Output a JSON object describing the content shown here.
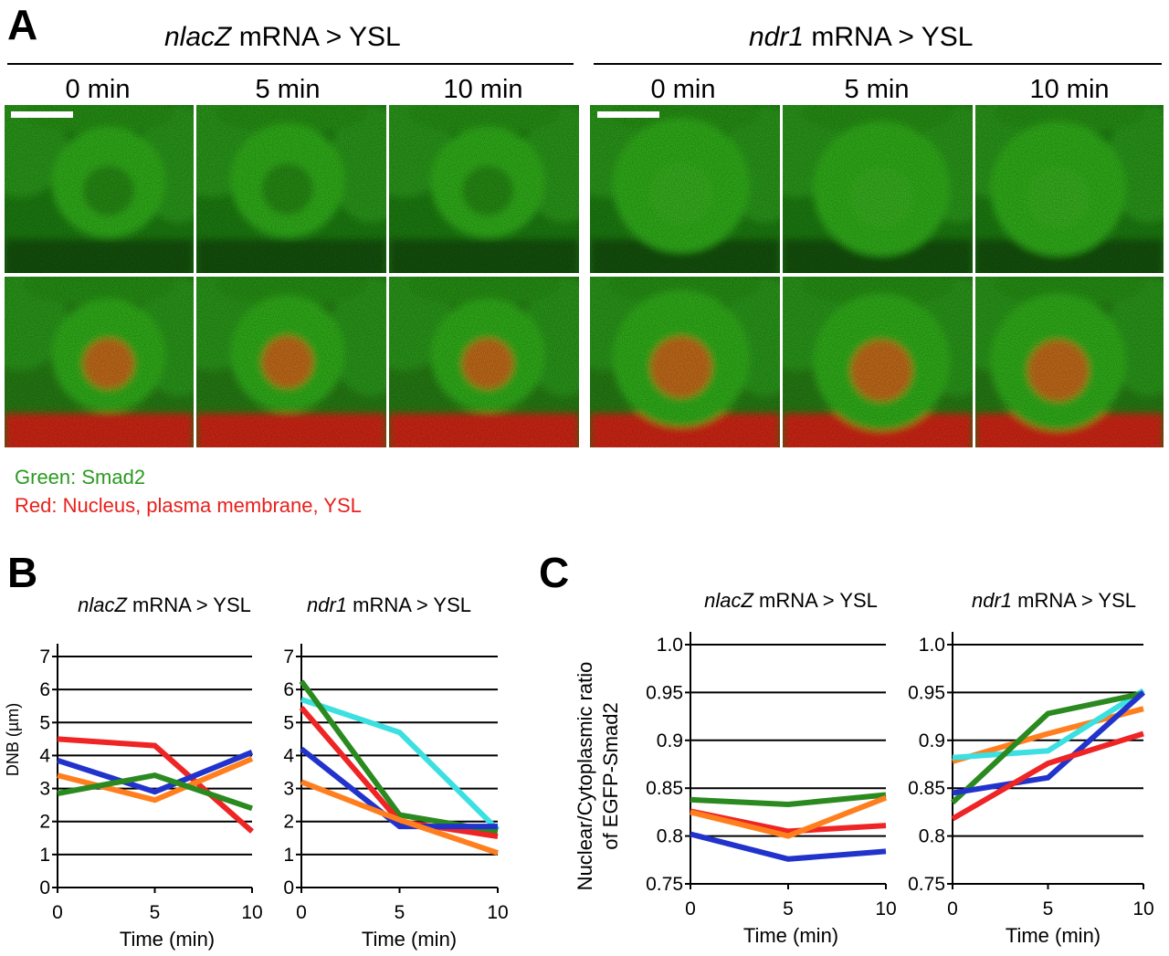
{
  "panel_a": {
    "letter": "A",
    "conditions": [
      {
        "gene": "nlacZ",
        "rest": " mRNA > YSL",
        "timepoints": [
          "0 min",
          "5 min",
          "10 min"
        ]
      },
      {
        "gene": "ndr1",
        "rest": " mRNA > YSL",
        "timepoints": [
          "0 min",
          "5 min",
          "10 min"
        ]
      }
    ],
    "legend": {
      "green": "Green: Smad2",
      "red": "Red: Nucleus, plasma membrane, YSL"
    },
    "colors": {
      "green_channel": "#35c21a",
      "red_channel": "#e82a12",
      "nucleus": "#d9771a"
    }
  },
  "panel_b": {
    "letter": "B"
  },
  "panel_c": {
    "letter": "C"
  },
  "chart_data": [
    {
      "id": "B-left",
      "type": "line",
      "title_italic": "nlacZ",
      "title_rest": " mRNA > YSL",
      "xlabel": "Time (min)",
      "ylabel": "DNB (µm)",
      "x": [
        0,
        5,
        10
      ],
      "x_ticks": [
        "0",
        "5",
        "10"
      ],
      "ylim": [
        0,
        7
      ],
      "y_ticks": [
        "0",
        "1",
        "2",
        "3",
        "4",
        "5",
        "6",
        "7"
      ],
      "grid": true,
      "series": [
        {
          "color": "#ef2424",
          "values": [
            4.5,
            4.3,
            1.7
          ]
        },
        {
          "color": "#2233cc",
          "values": [
            3.85,
            2.9,
            4.1
          ]
        },
        {
          "color": "#ff7f1e",
          "values": [
            3.4,
            2.65,
            3.9
          ]
        },
        {
          "color": "#2a8a1f",
          "values": [
            2.85,
            3.4,
            2.4
          ]
        }
      ]
    },
    {
      "id": "B-right",
      "type": "line",
      "title_italic": "ndr1",
      "title_rest": " mRNA > YSL",
      "xlabel": "Time (min)",
      "ylabel": "",
      "x": [
        0,
        5,
        10
      ],
      "x_ticks": [
        "0",
        "5",
        "10"
      ],
      "ylim": [
        0,
        7
      ],
      "y_ticks": [
        "0",
        "1",
        "2",
        "3",
        "4",
        "5",
        "6",
        "7"
      ],
      "grid": true,
      "series": [
        {
          "color": "#3ce0e0",
          "values": [
            5.7,
            4.7,
            1.75
          ]
        },
        {
          "color": "#2a8a1f",
          "values": [
            6.25,
            2.2,
            1.7
          ]
        },
        {
          "color": "#ef2424",
          "values": [
            5.45,
            2.0,
            1.55
          ]
        },
        {
          "color": "#2233cc",
          "values": [
            4.2,
            1.85,
            1.85
          ]
        },
        {
          "color": "#ff7f1e",
          "values": [
            3.2,
            2.05,
            1.05
          ]
        }
      ]
    },
    {
      "id": "C-left",
      "type": "line",
      "title_italic": "nlacZ",
      "title_rest": " mRNA > YSL",
      "xlabel": "Time (min)",
      "ylabel": "Nuclear/Cytoplasmic ratio\nof EGFP-Smad2",
      "x": [
        0,
        5,
        10
      ],
      "x_ticks": [
        "0",
        "5",
        "10"
      ],
      "ylim": [
        0.75,
        1.0
      ],
      "y_ticks": [
        "0.75",
        "0.8",
        "0.85",
        "0.9",
        "0.95",
        "1.0"
      ],
      "grid": true,
      "series": [
        {
          "color": "#2a8a1f",
          "values": [
            0.838,
            0.833,
            0.843
          ]
        },
        {
          "color": "#ef2424",
          "values": [
            0.826,
            0.805,
            0.811
          ]
        },
        {
          "color": "#ff7f1e",
          "values": [
            0.825,
            0.8,
            0.84
          ]
        },
        {
          "color": "#2233cc",
          "values": [
            0.802,
            0.776,
            0.784
          ]
        }
      ]
    },
    {
      "id": "C-right",
      "type": "line",
      "title_italic": "ndr1",
      "title_rest": " mRNA > YSL",
      "xlabel": "Time (min)",
      "ylabel": "",
      "x": [
        0,
        5,
        10
      ],
      "x_ticks": [
        "0",
        "5",
        "10"
      ],
      "ylim": [
        0.75,
        1.0
      ],
      "y_ticks": [
        "0.75",
        "0.8",
        "0.85",
        "0.9",
        "0.95",
        "1.0"
      ],
      "grid": true,
      "series": [
        {
          "color": "#ff7f1e",
          "values": [
            0.878,
            0.907,
            0.933
          ]
        },
        {
          "color": "#3ce0e0",
          "values": [
            0.882,
            0.889,
            0.952
          ]
        },
        {
          "color": "#2a8a1f",
          "values": [
            0.835,
            0.928,
            0.949
          ]
        },
        {
          "color": "#2233cc",
          "values": [
            0.845,
            0.861,
            0.95
          ]
        },
        {
          "color": "#ef2424",
          "values": [
            0.818,
            0.876,
            0.907
          ]
        }
      ]
    }
  ]
}
